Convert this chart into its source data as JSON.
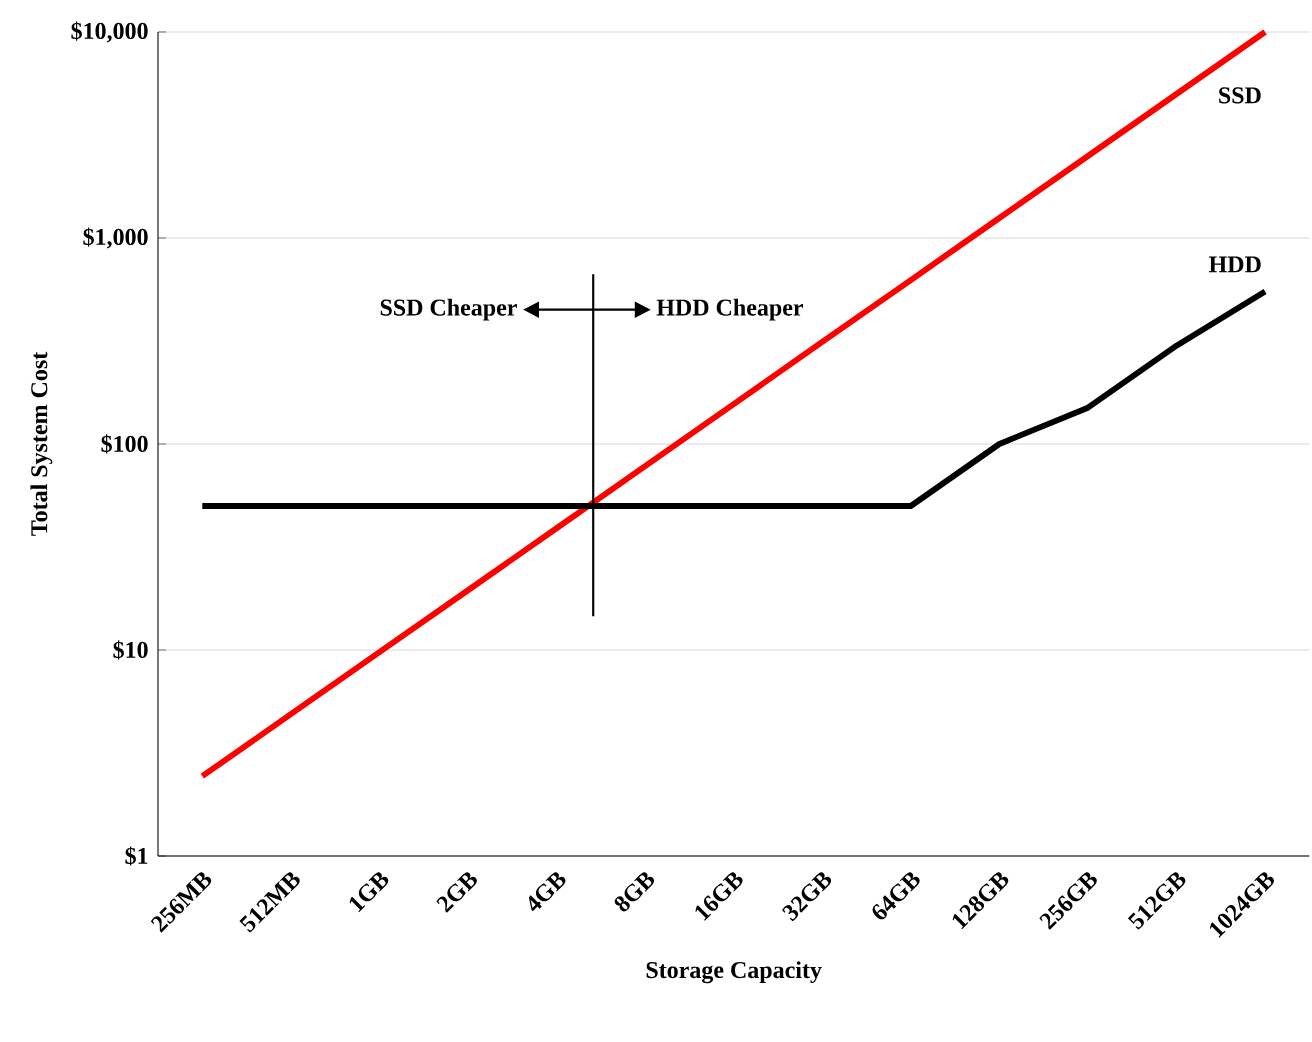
{
  "chart_data": {
    "type": "line",
    "xlabel": "Storage Capacity",
    "ylabel": "Total System Cost",
    "categories": [
      "256MB",
      "512MB",
      "1GB",
      "2GB",
      "4GB",
      "8GB",
      "16GB",
      "32GB",
      "64GB",
      "128GB",
      "256GB",
      "512GB",
      "1024GB"
    ],
    "series": [
      {
        "name": "SSD",
        "color": "#ff0000",
        "values": [
          2.44,
          4.88,
          9.77,
          19.5,
          39,
          78,
          156,
          313,
          625,
          1250,
          2500,
          5000,
          10000
        ]
      },
      {
        "name": "HDD",
        "color": "#000000",
        "values": [
          50,
          50,
          50,
          50,
          50,
          50,
          50,
          50,
          50,
          100,
          150,
          300,
          550
        ]
      }
    ],
    "log": true,
    "ylim": [
      1,
      10000
    ],
    "yticks": [
      {
        "value": 1,
        "label": "$1"
      },
      {
        "value": 10,
        "label": "$10"
      },
      {
        "value": 100,
        "label": "$100"
      },
      {
        "value": 1000,
        "label": "$1,000"
      },
      {
        "value": 10000,
        "label": "$10,000"
      }
    ],
    "grid": "y",
    "marker": "none",
    "line_style": "solid",
    "annotations": [
      "SSD Cheaper",
      "HDD Cheaper"
    ]
  }
}
